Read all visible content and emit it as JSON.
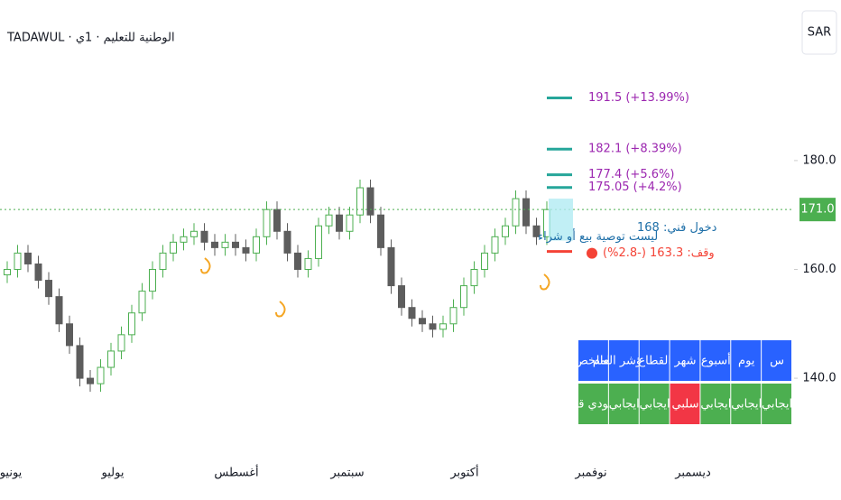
{
  "header": {
    "title": "TADAWUL · الوطنية للتعليم · 1ي",
    "currency": "SAR"
  },
  "chart_data": {
    "type": "candlestick",
    "categories": [
      "يونيو",
      "يوليو",
      "أغسطس",
      "سبتمبر",
      "أكتوبر",
      "نوفمبر",
      "ديسمبر"
    ],
    "ylim": [
      129.9,
      209.5
    ],
    "yticks": [
      {
        "value": 140,
        "label": "140.0"
      },
      {
        "value": 160,
        "label": "160.0"
      },
      {
        "value": 180,
        "label": "180.0"
      }
    ],
    "up_color": "#4caf50",
    "down_color": "#5d5d5d",
    "open": [
      159,
      160,
      163,
      161,
      158,
      155,
      150,
      146,
      140,
      139,
      142,
      145,
      148,
      152,
      156,
      160,
      163,
      165,
      166,
      167,
      165,
      164,
      165,
      164,
      163,
      166,
      171,
      167,
      163,
      160,
      162,
      168,
      170,
      167,
      170,
      175,
      170,
      164,
      157,
      153,
      151,
      150,
      149,
      150,
      153,
      157,
      160,
      163,
      166,
      168,
      173,
      168,
      166
    ],
    "high": [
      161.5,
      164.5,
      164.5,
      162.5,
      159.5,
      156.5,
      151.5,
      147.5,
      141.5,
      143.5,
      146.5,
      149.5,
      153.5,
      157.5,
      161.5,
      164.5,
      166.5,
      167.5,
      168.5,
      168.5,
      166.5,
      166.5,
      166.5,
      165.5,
      167.5,
      172.5,
      172.5,
      168.5,
      164.5,
      163.5,
      169.5,
      171.5,
      171.5,
      171.5,
      176.5,
      176.5,
      171.5,
      165.5,
      158.5,
      154.5,
      152.5,
      151.5,
      151.5,
      154.5,
      158.5,
      161.5,
      164.5,
      167.5,
      169.5,
      174.5,
      174.5,
      169.5,
      172.5
    ],
    "low": [
      157.5,
      158.5,
      159.5,
      156.5,
      153.5,
      148.5,
      144.5,
      138.5,
      137.5,
      137.5,
      140.5,
      143.5,
      146.5,
      150.5,
      154.5,
      158.5,
      161.5,
      163.5,
      164.5,
      163.5,
      162.5,
      162.5,
      162.5,
      161.5,
      161.5,
      164.5,
      165.5,
      161.5,
      158.5,
      158.5,
      160.5,
      166.5,
      165.5,
      165.5,
      168.5,
      168.5,
      162.5,
      155.5,
      151.5,
      149.5,
      148.5,
      147.5,
      147.5,
      148.5,
      151.5,
      155.5,
      158.5,
      161.5,
      164.5,
      166.5,
      166.5,
      164.5,
      164.5
    ],
    "close": [
      160,
      163,
      161,
      158,
      155,
      150,
      146,
      140,
      139,
      142,
      145,
      148,
      152,
      156,
      160,
      163,
      165,
      166,
      167,
      165,
      164,
      165,
      164,
      163,
      166,
      171,
      167,
      163,
      160,
      162,
      168,
      170,
      167,
      170,
      175,
      170,
      164,
      157,
      153,
      151,
      150,
      149,
      150,
      153,
      157,
      160,
      163,
      166,
      168,
      173,
      168,
      166,
      171
    ],
    "last_price": {
      "value": 171,
      "label": "171.0",
      "color": "#4caf50"
    },
    "targets": {
      "color": "#26a69a",
      "label_color": "#9c27b0",
      "levels": [
        {
          "value": 191.5,
          "label": "191.5 (+13.99%)"
        },
        {
          "value": 182.1,
          "label": "182.1 (+8.39%)"
        },
        {
          "value": 177.4,
          "label": "177.4 (+5.6%)"
        },
        {
          "value": 175.05,
          "label": "175.05 (+4.2%)"
        }
      ]
    },
    "entry": {
      "value": 168,
      "label": "دخول فني: 168"
    },
    "stop": {
      "value": 163.3,
      "label": "وقف: 163.3 (-2.8%)",
      "color": "#f44336"
    },
    "note": "ليست توصية بيع أو شراء"
  },
  "table": {
    "header": [
      "الملخص",
      "المؤشر العام",
      "القطاع",
      "شهر",
      "أسبوع",
      "يوم",
      "س"
    ],
    "row": [
      "صعودي قوي",
      "ايجابي",
      "ايجابي",
      "سلبي",
      "ايجابي",
      "ايجابي",
      "ايجابي"
    ]
  }
}
